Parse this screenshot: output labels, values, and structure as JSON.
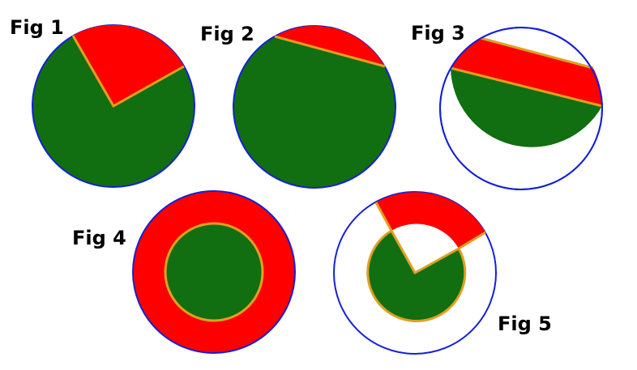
{
  "colors": {
    "green": "#116e11",
    "red": "#ff0000",
    "outline": "#1520d6",
    "edge": "#e0a020",
    "background": "#ffffff"
  },
  "figures": [
    {
      "label": "Fig 1",
      "shape": "sector cut from circle"
    },
    {
      "label": "Fig 2",
      "shape": "circular segment cut by chord"
    },
    {
      "label": "Fig 3",
      "shape": "band between two chords"
    },
    {
      "label": "Fig 4",
      "shape": "annulus around inner disc"
    },
    {
      "label": "Fig 5",
      "shape": "annular sector with inner sector removed"
    }
  ]
}
